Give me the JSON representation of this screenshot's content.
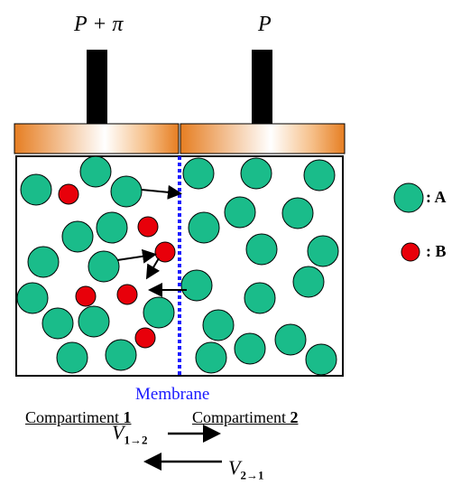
{
  "pressure_left": "P + π",
  "pressure_right": "P",
  "membrane_label": "Membrane",
  "compartment_left": {
    "prefix": "Compartiment ",
    "number": "1"
  },
  "compartment_right": {
    "prefix": "Compartiment ",
    "number": "2"
  },
  "flux_right": {
    "symbol": "V",
    "sub": "1→2"
  },
  "flux_left": {
    "symbol": "V",
    "sub": "2→1"
  },
  "legend": [
    {
      "label": ": A",
      "color": "#1abc8a"
    },
    {
      "label": ": B",
      "color": "#e8000a"
    }
  ],
  "colors": {
    "solvent": "#1abc8a",
    "solute": "#e8000a",
    "membrane": "#1a1aff",
    "piston_shaft": "#000000"
  }
}
